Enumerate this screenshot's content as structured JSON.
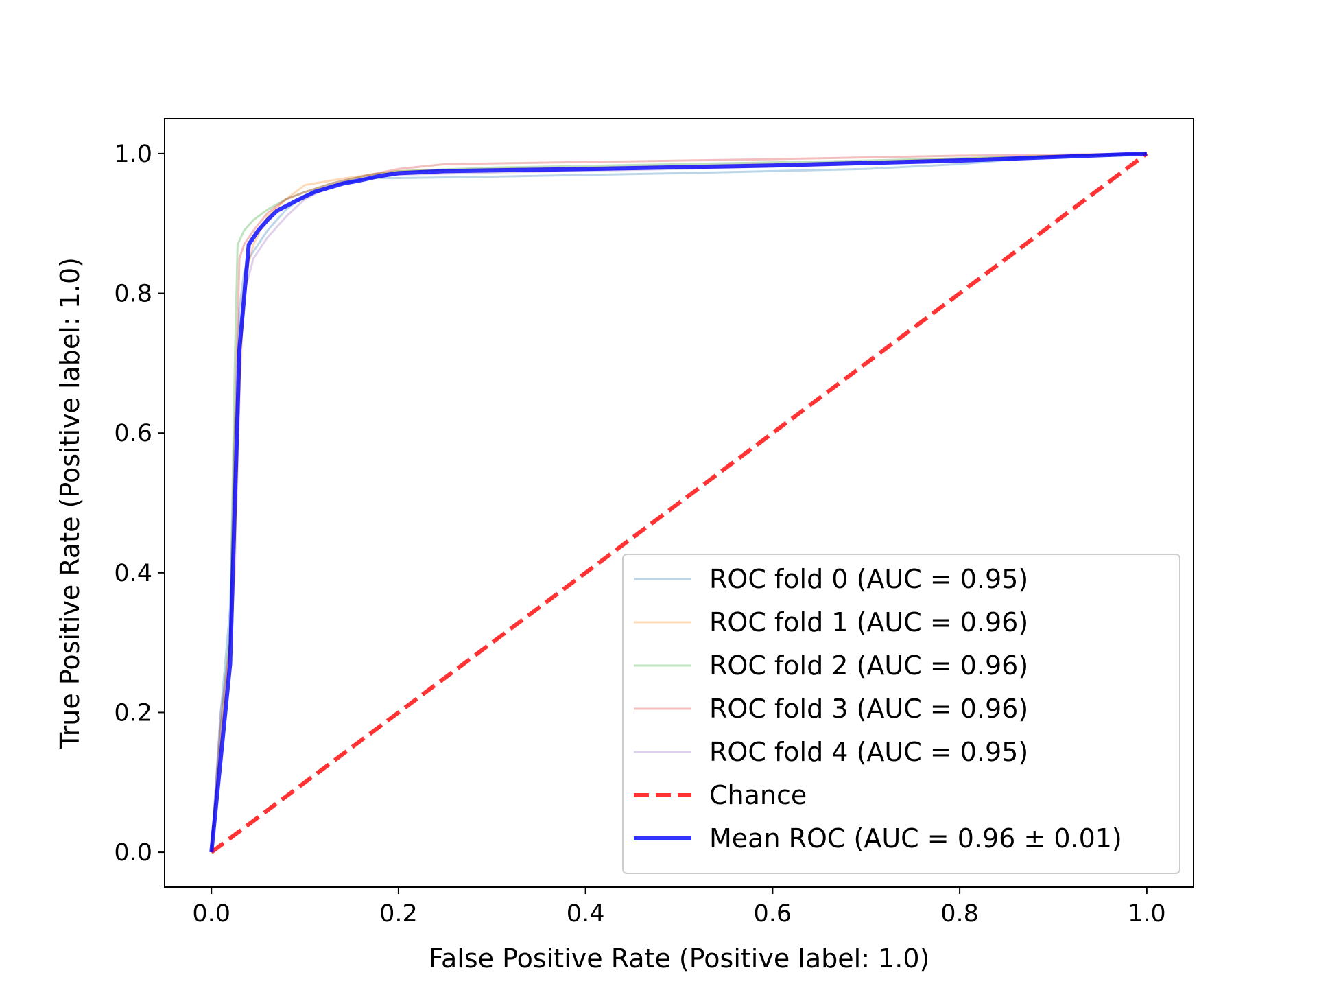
{
  "chart_data": {
    "type": "line",
    "title": "",
    "xlabel": "False Positive Rate (Positive label: 1.0)",
    "ylabel": "True Positive Rate (Positive label: 1.0)",
    "xlim": [
      -0.05,
      1.05
    ],
    "ylim": [
      -0.05,
      1.05
    ],
    "xticks": [
      0.0,
      0.2,
      0.4,
      0.6,
      0.8,
      1.0
    ],
    "xtick_labels": [
      "0.0",
      "0.2",
      "0.4",
      "0.6",
      "0.8",
      "1.0"
    ],
    "yticks": [
      0.0,
      0.2,
      0.4,
      0.6,
      0.8,
      1.0
    ],
    "ytick_labels": [
      "0.0",
      "0.2",
      "0.4",
      "0.6",
      "0.8",
      "1.0"
    ],
    "grid": false,
    "legend_position": "lower-right",
    "series": [
      {
        "name": "ROC fold 0 (AUC = 0.95)",
        "color": "#1f77b4",
        "opacity": 0.3,
        "dash": "solid",
        "width": 3,
        "x": [
          0,
          0.01,
          0.02,
          0.025,
          0.03,
          0.035,
          0.04,
          0.06,
          0.08,
          0.1,
          0.13,
          0.17,
          0.2,
          0.3,
          0.5,
          0.7,
          0.8,
          0.87,
          0.9,
          1.0
        ],
        "y": [
          0,
          0.2,
          0.35,
          0.6,
          0.78,
          0.83,
          0.85,
          0.89,
          0.92,
          0.94,
          0.955,
          0.965,
          0.965,
          0.967,
          0.972,
          0.978,
          0.985,
          0.993,
          0.996,
          1.0
        ]
      },
      {
        "name": "ROC fold 1 (AUC = 0.96)",
        "color": "#ff7f0e",
        "opacity": 0.3,
        "dash": "solid",
        "width": 3,
        "x": [
          0,
          0.01,
          0.02,
          0.025,
          0.03,
          0.035,
          0.045,
          0.06,
          0.08,
          0.1,
          0.13,
          0.17,
          0.2,
          0.3,
          0.5,
          0.7,
          0.85,
          1.0
        ],
        "y": [
          0,
          0.15,
          0.3,
          0.4,
          0.65,
          0.82,
          0.87,
          0.91,
          0.935,
          0.955,
          0.962,
          0.97,
          0.975,
          0.978,
          0.982,
          0.988,
          0.995,
          1.0
        ]
      },
      {
        "name": "ROC fold 2 (AUC = 0.96)",
        "color": "#2ca02c",
        "opacity": 0.3,
        "dash": "solid",
        "width": 3,
        "x": [
          0,
          0.01,
          0.02,
          0.025,
          0.028,
          0.035,
          0.045,
          0.06,
          0.08,
          0.1,
          0.13,
          0.17,
          0.2,
          0.3,
          0.5,
          0.7,
          0.85,
          1.0
        ],
        "y": [
          0,
          0.18,
          0.32,
          0.7,
          0.87,
          0.89,
          0.905,
          0.92,
          0.935,
          0.945,
          0.958,
          0.97,
          0.975,
          0.98,
          0.985,
          0.99,
          0.995,
          1.0
        ]
      },
      {
        "name": "ROC fold 3 (AUC = 0.96)",
        "color": "#d62728",
        "opacity": 0.3,
        "dash": "solid",
        "width": 3,
        "x": [
          0,
          0.01,
          0.02,
          0.025,
          0.03,
          0.035,
          0.045,
          0.06,
          0.08,
          0.1,
          0.13,
          0.17,
          0.2,
          0.25,
          0.4,
          0.6,
          0.8,
          1.0
        ],
        "y": [
          0,
          0.18,
          0.3,
          0.6,
          0.85,
          0.87,
          0.89,
          0.915,
          0.935,
          0.945,
          0.958,
          0.97,
          0.978,
          0.985,
          0.988,
          0.992,
          0.997,
          1.0
        ]
      },
      {
        "name": "ROC fold 4 (AUC = 0.95)",
        "color": "#9467bd",
        "opacity": 0.3,
        "dash": "solid",
        "width": 3,
        "x": [
          0,
          0.01,
          0.02,
          0.025,
          0.03,
          0.035,
          0.045,
          0.06,
          0.08,
          0.1,
          0.13,
          0.17,
          0.2,
          0.3,
          0.5,
          0.7,
          0.85,
          1.0
        ],
        "y": [
          0,
          0.2,
          0.3,
          0.5,
          0.7,
          0.8,
          0.85,
          0.88,
          0.91,
          0.935,
          0.955,
          0.965,
          0.97,
          0.973,
          0.978,
          0.985,
          0.993,
          1.0
        ]
      },
      {
        "name": "Chance",
        "color": "#ff0000",
        "opacity": 0.8,
        "dash": "dashed",
        "width": 6,
        "x": [
          0,
          1
        ],
        "y": [
          0,
          1
        ]
      },
      {
        "name": "Mean ROC (AUC = 0.96 ± 0.01)",
        "color": "#0000ff",
        "opacity": 0.8,
        "dash": "solid",
        "width": 6,
        "x": [
          0,
          0.02,
          0.03,
          0.04,
          0.05,
          0.06,
          0.07,
          0.09,
          0.11,
          0.14,
          0.16,
          0.18,
          0.2,
          0.25,
          0.4,
          0.6,
          0.8,
          0.9,
          1.0
        ],
        "y": [
          0,
          0.27,
          0.72,
          0.87,
          0.89,
          0.905,
          0.918,
          0.932,
          0.945,
          0.957,
          0.962,
          0.968,
          0.972,
          0.975,
          0.978,
          0.983,
          0.99,
          0.995,
          1.0
        ]
      }
    ]
  }
}
